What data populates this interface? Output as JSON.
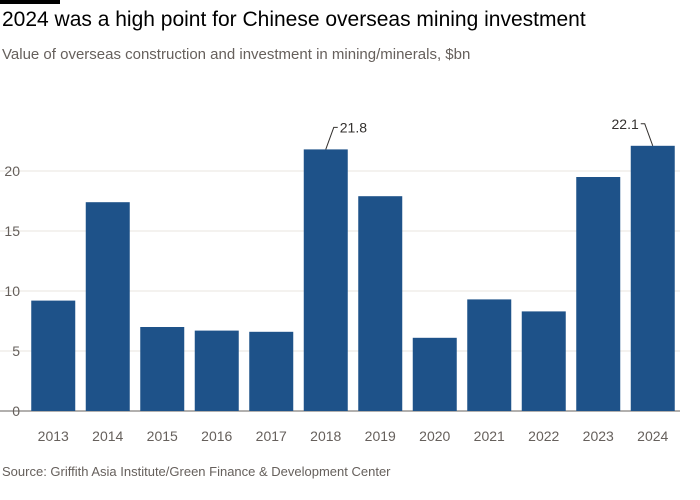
{
  "header": {
    "title": "2024 was a high point for Chinese overseas mining investment",
    "subtitle": "Value of overseas construction and investment in mining/minerals, $bn"
  },
  "footer": {
    "source": "Source: Griffith Asia Institute/Green Finance & Development Center"
  },
  "chart_data": {
    "type": "bar",
    "title": "2024 was a high point for Chinese overseas mining investment",
    "subtitle": "Value of overseas construction and investment in mining/minerals, $bn",
    "categories": [
      "2013",
      "2014",
      "2015",
      "2016",
      "2017",
      "2018",
      "2019",
      "2020",
      "2021",
      "2022",
      "2023",
      "2024"
    ],
    "values": [
      9.2,
      17.4,
      7.0,
      6.7,
      6.6,
      21.8,
      17.9,
      6.1,
      9.3,
      8.3,
      19.5,
      22.1
    ],
    "yticks": [
      0,
      5,
      10,
      15,
      20
    ],
    "ylim": [
      0,
      25
    ],
    "grid": true,
    "bar_color": "#1e5289",
    "annotations": [
      {
        "category": "2018",
        "text": "21.8"
      },
      {
        "category": "2024",
        "text": "22.1"
      }
    ]
  }
}
